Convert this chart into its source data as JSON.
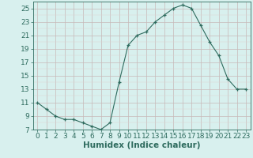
{
  "x": [
    0,
    1,
    2,
    3,
    4,
    5,
    6,
    7,
    8,
    9,
    10,
    11,
    12,
    13,
    14,
    15,
    16,
    17,
    18,
    19,
    20,
    21,
    22,
    23
  ],
  "y": [
    11,
    10,
    9,
    8.5,
    8.5,
    8,
    7.5,
    7,
    8,
    14,
    19.5,
    21,
    21.5,
    23,
    24,
    25,
    25.5,
    25,
    22.5,
    20,
    18,
    14.5,
    13,
    13
  ],
  "line_color": "#2e6b5e",
  "marker": "+",
  "bg_color": "#d8f0ee",
  "grid_major_color": "#c8b8b8",
  "grid_minor_color": "#ddd0d0",
  "xlabel": "Humidex (Indice chaleur)",
  "ylabel": "",
  "xlim": [
    -0.5,
    23.5
  ],
  "ylim": [
    7,
    26
  ],
  "yticks": [
    7,
    9,
    11,
    13,
    15,
    17,
    19,
    21,
    23,
    25
  ],
  "xticks": [
    0,
    1,
    2,
    3,
    4,
    5,
    6,
    7,
    8,
    9,
    10,
    11,
    12,
    13,
    14,
    15,
    16,
    17,
    18,
    19,
    20,
    21,
    22,
    23
  ],
  "tick_label_fontsize": 6.5,
  "xlabel_fontsize": 7.5
}
